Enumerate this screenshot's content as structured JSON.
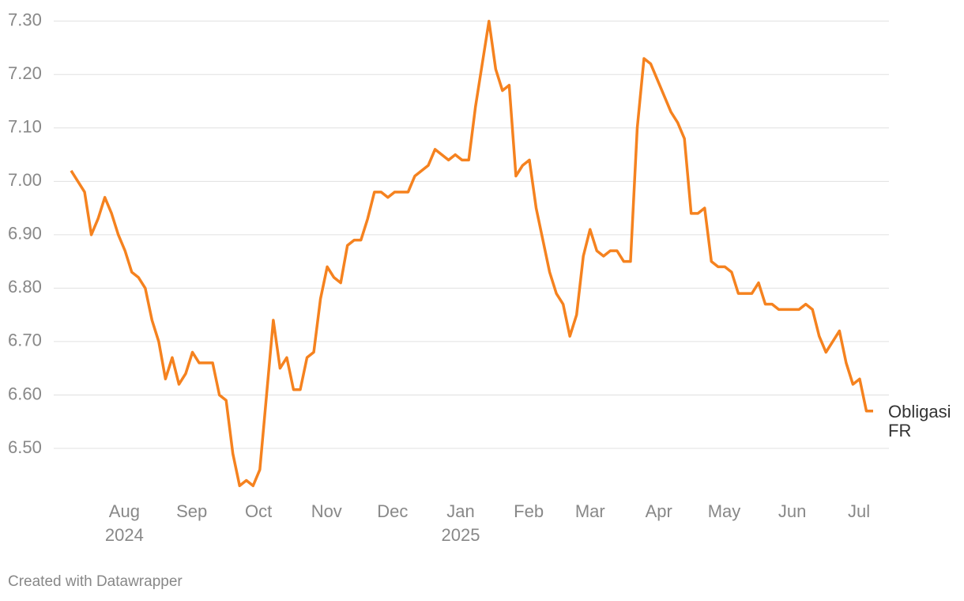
{
  "chart_data": {
    "type": "line",
    "series": [
      {
        "name": "Obligasi FR",
        "color": "#f5821f",
        "values": [
          7.02,
          7.0,
          6.98,
          6.9,
          6.93,
          6.97,
          6.94,
          6.9,
          6.87,
          6.83,
          6.82,
          6.8,
          6.74,
          6.7,
          6.63,
          6.67,
          6.62,
          6.64,
          6.68,
          6.66,
          6.66,
          6.66,
          6.6,
          6.59,
          6.49,
          6.43,
          6.44,
          6.43,
          6.46,
          6.6,
          6.74,
          6.65,
          6.67,
          6.61,
          6.61,
          6.67,
          6.68,
          6.78,
          6.84,
          6.82,
          6.81,
          6.88,
          6.89,
          6.89,
          6.93,
          6.98,
          6.98,
          6.97,
          6.98,
          6.98,
          6.98,
          7.01,
          7.02,
          7.03,
          7.06,
          7.05,
          7.04,
          7.05,
          7.04,
          7.04,
          7.14,
          7.22,
          7.3,
          7.21,
          7.17,
          7.18,
          7.01,
          7.03,
          7.04,
          6.95,
          6.89,
          6.83,
          6.79,
          6.77,
          6.71,
          6.75,
          6.86,
          6.91,
          6.87,
          6.86,
          6.87,
          6.87,
          6.85,
          6.85,
          7.1,
          7.23,
          7.22,
          7.19,
          7.16,
          7.13,
          7.11,
          7.08,
          6.94,
          6.94,
          6.95,
          6.85,
          6.84,
          6.84,
          6.83,
          6.79,
          6.79,
          6.79,
          6.81,
          6.77,
          6.77,
          6.76,
          6.76,
          6.76,
          6.76,
          6.77,
          6.76,
          6.71,
          6.68,
          6.7,
          6.72,
          6.66,
          6.62,
          6.63,
          6.57,
          6.57
        ]
      }
    ],
    "xlim": [
      0,
      119
    ],
    "xticks": [
      {
        "value": 7.9,
        "label": "Aug"
      },
      {
        "value": 17.9,
        "label": "Sep"
      },
      {
        "value": 27.8,
        "label": "Oct"
      },
      {
        "value": 37.9,
        "label": "Nov"
      },
      {
        "value": 47.7,
        "label": "Dec"
      },
      {
        "value": 57.8,
        "label": "Jan"
      },
      {
        "value": 67.9,
        "label": "Feb"
      },
      {
        "value": 77.0,
        "label": "Mar"
      },
      {
        "value": 87.2,
        "label": "Apr"
      },
      {
        "value": 96.9,
        "label": "May"
      },
      {
        "value": 107.0,
        "label": "Jun"
      },
      {
        "value": 116.9,
        "label": "Jul"
      }
    ],
    "year_ticks": [
      {
        "value": 7.9,
        "label": "2024"
      },
      {
        "value": 57.8,
        "label": "2025"
      }
    ],
    "ylim": [
      6.42,
      7.31
    ],
    "yticks": [
      {
        "value": 6.5,
        "label": "6.50"
      },
      {
        "value": 6.6,
        "label": "6.60"
      },
      {
        "value": 6.7,
        "label": "6.70"
      },
      {
        "value": 6.8,
        "label": "6.80"
      },
      {
        "value": 6.9,
        "label": "6.90"
      },
      {
        "value": 7.0,
        "label": "7.00"
      },
      {
        "value": 7.1,
        "label": "7.10"
      },
      {
        "value": 7.2,
        "label": "7.20"
      },
      {
        "value": 7.3,
        "label": "7.30"
      }
    ],
    "grid": true,
    "footer": "Created with Datawrapper"
  }
}
